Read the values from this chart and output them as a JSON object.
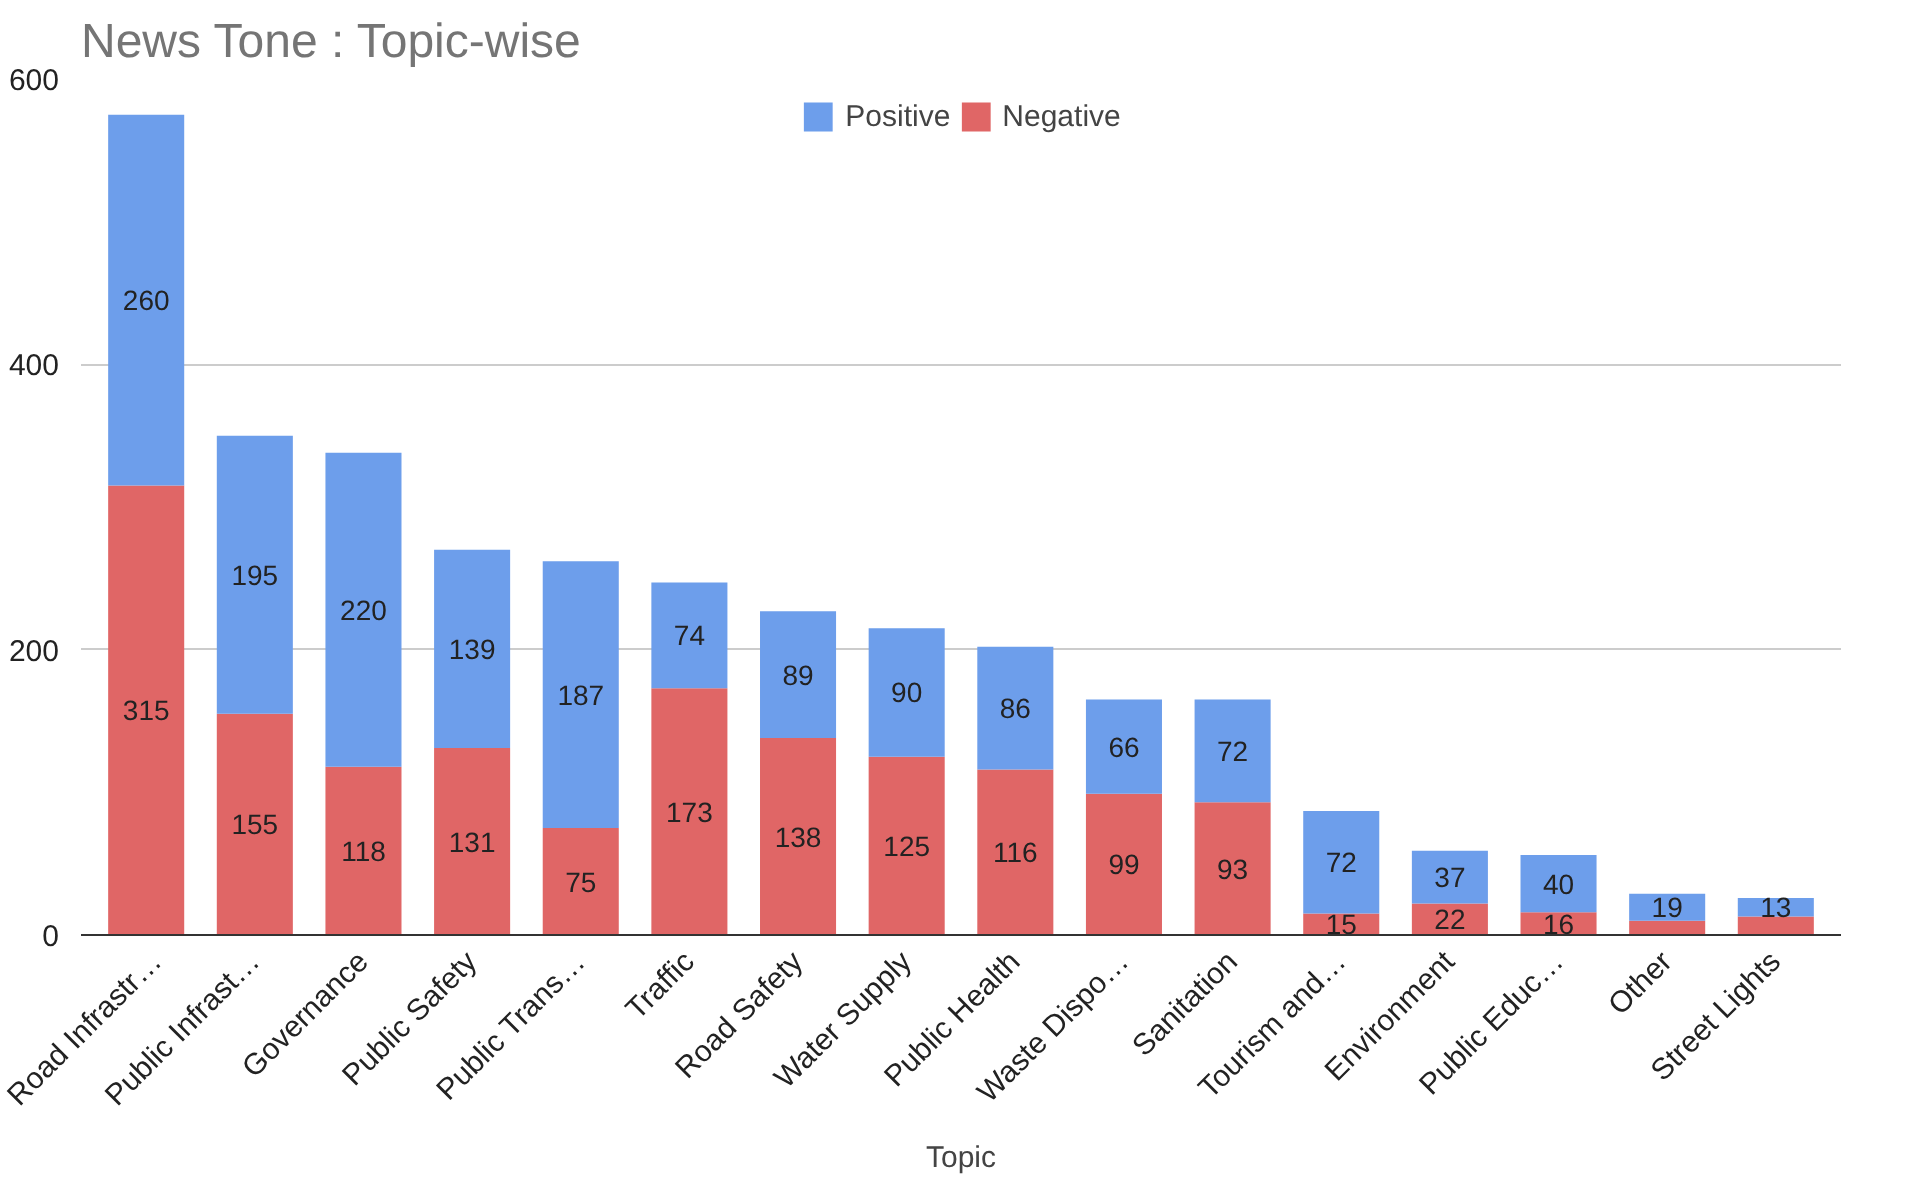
{
  "chart_data": {
    "type": "bar",
    "title": "News Tone : Topic-wise",
    "xlabel": "Topic",
    "categories": [
      "Road Infrastr…",
      "Public Infrast…",
      "Governance",
      "Public Safety",
      "Public Trans…",
      "Traffic",
      "Road Safety",
      "Water Supply",
      "Public Health",
      "Waste Dispo…",
      "Sanitation",
      "Tourism and…",
      "Environment",
      "Public Educ…",
      "Other",
      "Street Lights"
    ],
    "series": [
      {
        "name": "Negative",
        "color": "#e06666",
        "values": [
          315,
          155,
          118,
          131,
          75,
          173,
          138,
          125,
          116,
          99,
          93,
          15,
          22,
          16,
          10,
          13
        ],
        "value_labels": [
          "315",
          "155",
          "118",
          "131",
          "75",
          "173",
          "138",
          "125",
          "116",
          "99",
          "93",
          "15",
          "22",
          "16",
          null,
          null
        ]
      },
      {
        "name": "Positive",
        "color": "#6d9eeb",
        "values": [
          260,
          195,
          220,
          139,
          187,
          74,
          89,
          90,
          86,
          66,
          72,
          72,
          37,
          40,
          19,
          13
        ],
        "value_labels": [
          "260",
          "195",
          "220",
          "139",
          "187",
          "74",
          "89",
          "90",
          "86",
          "66",
          "72",
          "72",
          "37",
          "40",
          "19",
          "13"
        ]
      }
    ],
    "stacked": true,
    "ylim": [
      0,
      600
    ],
    "yticks": [
      0,
      200,
      400,
      600
    ],
    "grid": "y",
    "legend": "top"
  }
}
